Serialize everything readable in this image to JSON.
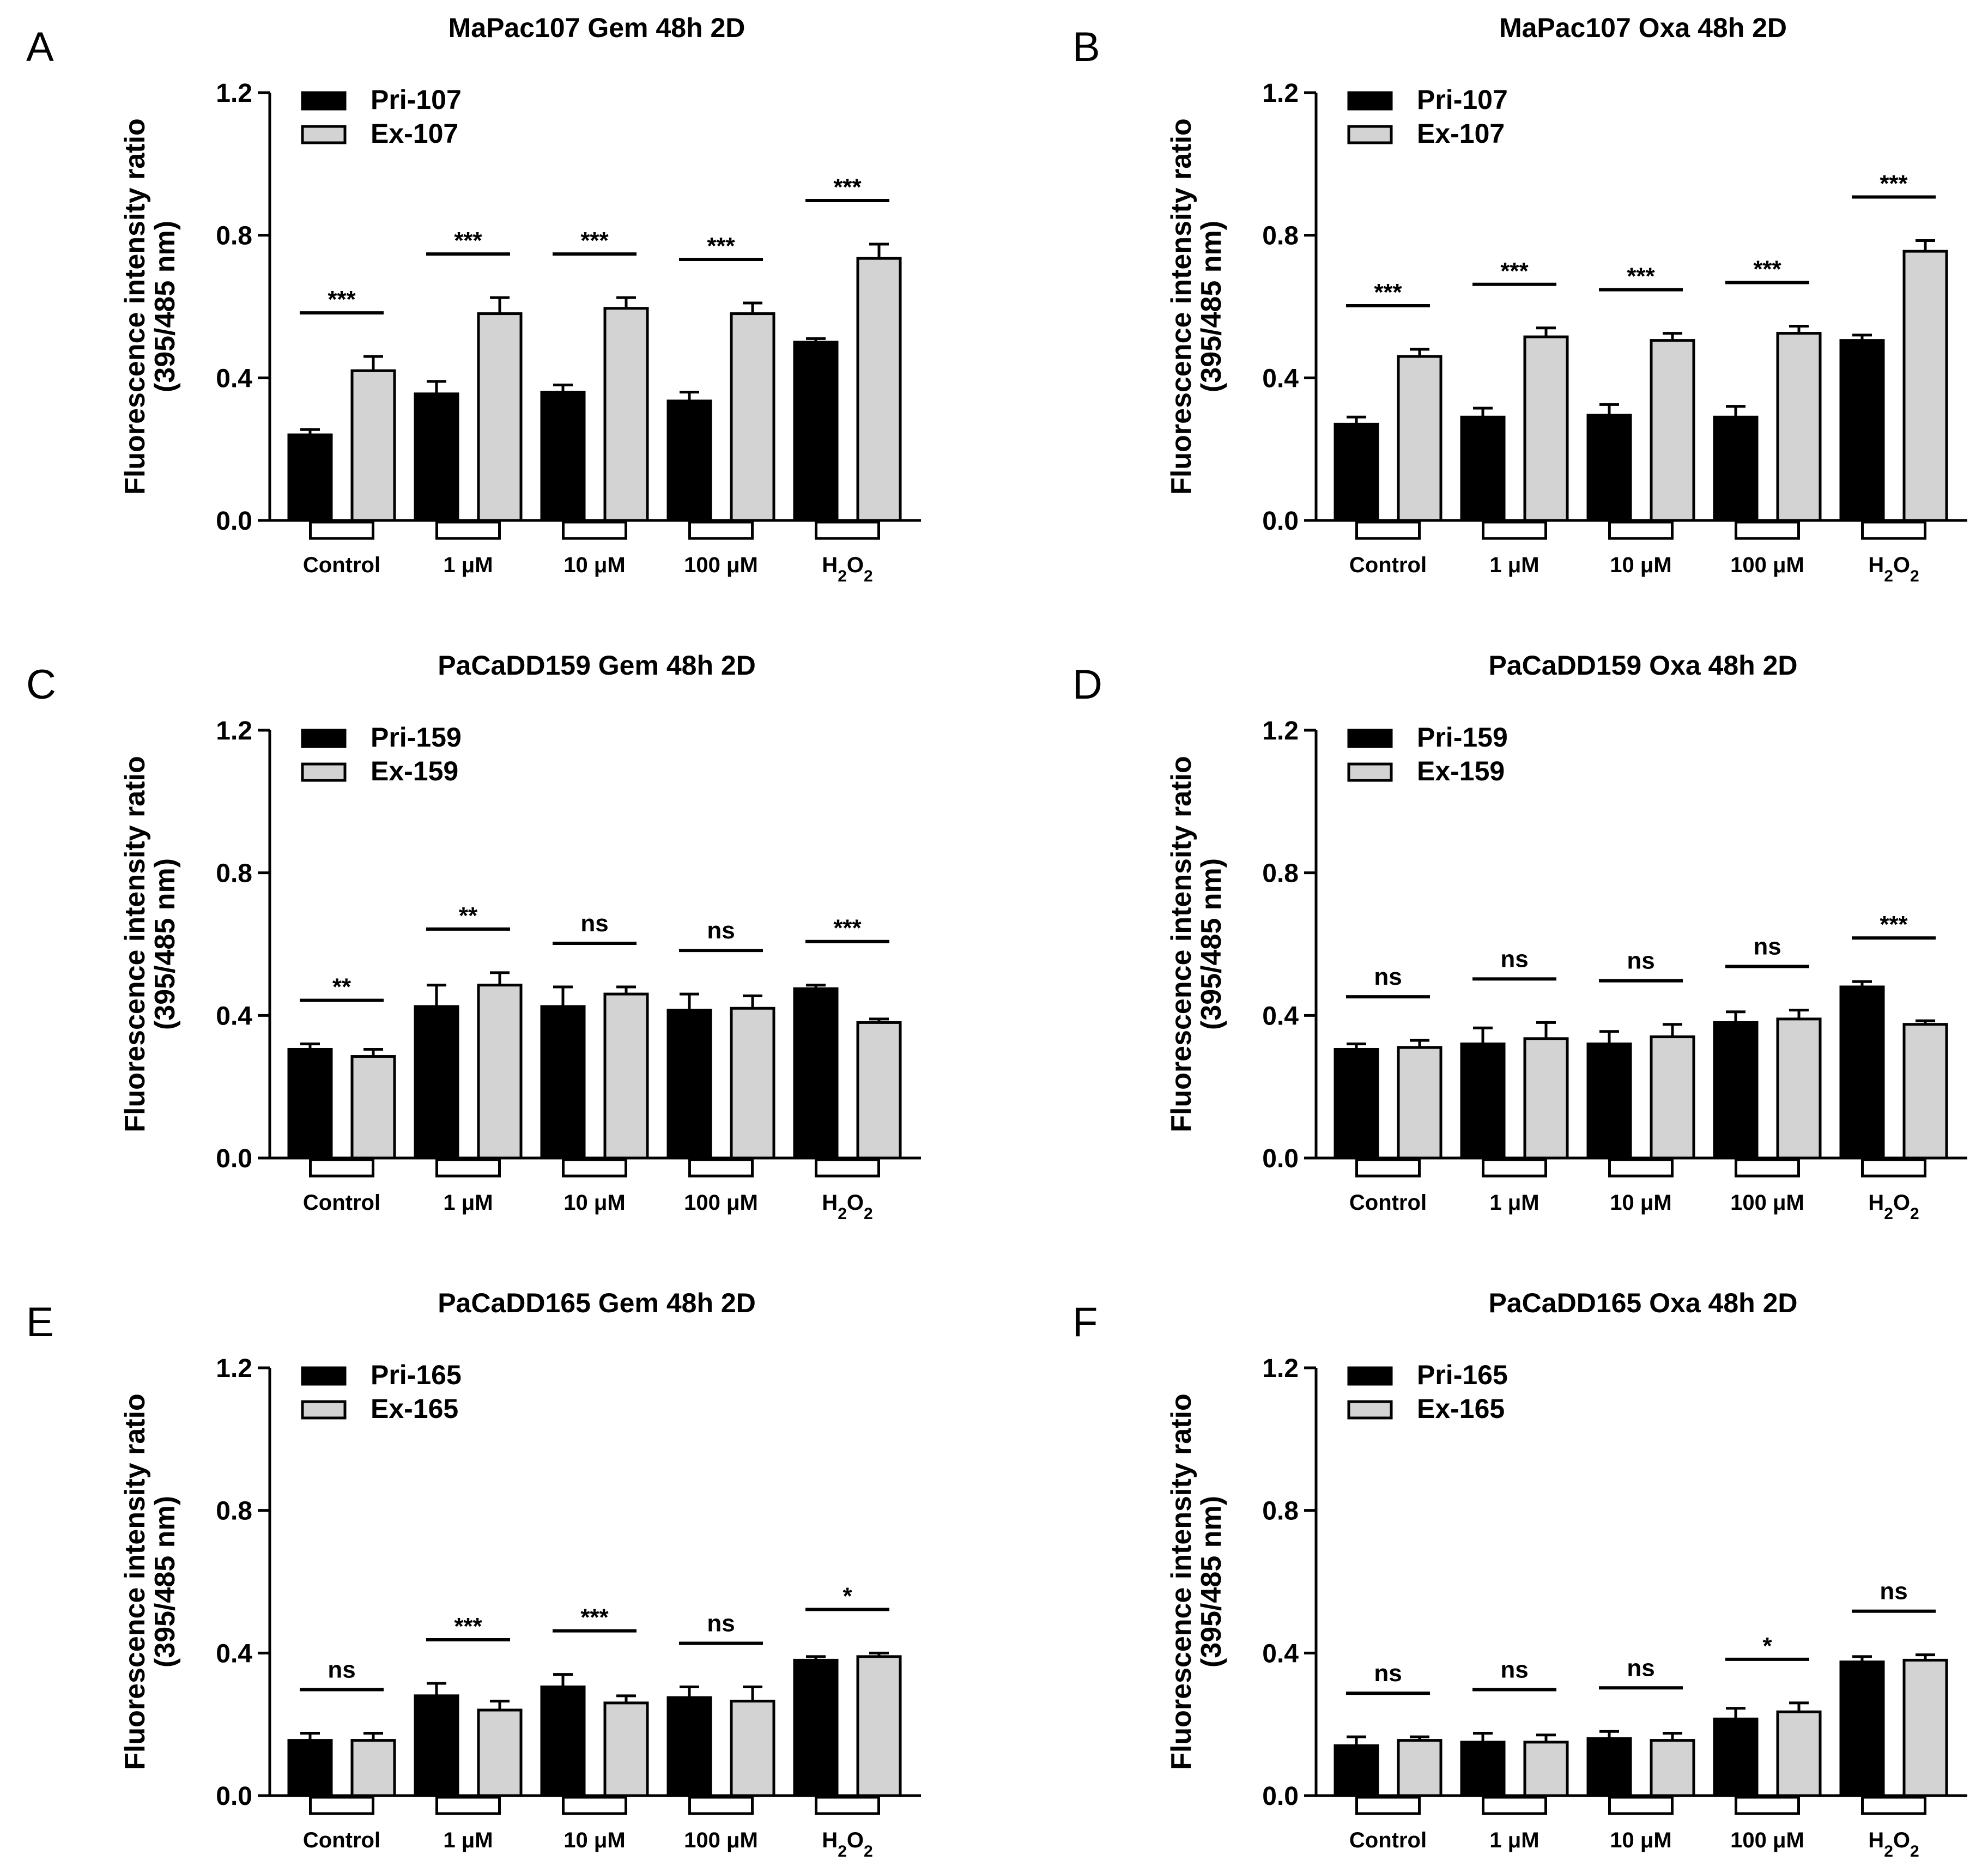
{
  "figure": {
    "type": "multi-panel grouped bar chart"
  },
  "colors": {
    "primary": "#000000",
    "excluded": "#d3d3d3",
    "axis": "#000000"
  },
  "chart_data": [
    {
      "panel": "A",
      "type": "bar",
      "title": "MaPac107 Gem 48h 2D",
      "ylabel_line1": "Fluorescence intensity ratio",
      "ylabel_line2": "(395/485 nm)",
      "ylim": [
        0,
        1.2
      ],
      "yticks": [
        "0.0",
        "0.4",
        "0.8",
        "1.2"
      ],
      "categories": [
        "Control",
        "1 μM",
        "10 μM",
        "100 μM",
        "H2O2"
      ],
      "series": [
        {
          "name": "Pri-107",
          "values": [
            0.24,
            0.355,
            0.36,
            0.335,
            0.5
          ],
          "errors": [
            0.015,
            0.035,
            0.02,
            0.025,
            0.01
          ]
        },
        {
          "name": "Ex-107",
          "values": [
            0.42,
            0.58,
            0.595,
            0.58,
            0.735
          ],
          "errors": [
            0.04,
            0.045,
            0.03,
            0.03,
            0.04
          ]
        }
      ],
      "significance": [
        "***",
        "***",
        "***",
        "***",
        "***"
      ]
    },
    {
      "panel": "B",
      "type": "bar",
      "title": "MaPac107 Oxa 48h 2D",
      "ylabel_line1": "Fluorescence intensity ratio",
      "ylabel_line2": "(395/485 nm)",
      "ylim": [
        0,
        1.2
      ],
      "yticks": [
        "0.0",
        "0.4",
        "0.8",
        "1.2"
      ],
      "categories": [
        "Control",
        "1 μM",
        "10 μM",
        "100 μM",
        "H2O2"
      ],
      "series": [
        {
          "name": "Pri-107",
          "values": [
            0.27,
            0.29,
            0.295,
            0.29,
            0.505
          ],
          "errors": [
            0.02,
            0.025,
            0.03,
            0.03,
            0.015
          ]
        },
        {
          "name": "Ex-107",
          "values": [
            0.46,
            0.515,
            0.505,
            0.525,
            0.755
          ],
          "errors": [
            0.02,
            0.025,
            0.02,
            0.02,
            0.03
          ]
        }
      ],
      "significance": [
        "***",
        "***",
        "***",
        "***",
        "***"
      ]
    },
    {
      "panel": "C",
      "type": "bar",
      "title": "PaCaDD159 Gem 48h 2D",
      "ylabel_line1": "Fluorescence intensity ratio",
      "ylabel_line2": "(395/485 nm)",
      "ylim": [
        0,
        1.2
      ],
      "yticks": [
        "0.0",
        "0.4",
        "0.8",
        "1.2"
      ],
      "categories": [
        "Control",
        "1 μM",
        "10 μM",
        "100 μM",
        "H2O2"
      ],
      "series": [
        {
          "name": "Pri-159",
          "values": [
            0.305,
            0.425,
            0.425,
            0.415,
            0.475
          ],
          "errors": [
            0.015,
            0.06,
            0.055,
            0.045,
            0.01
          ]
        },
        {
          "name": "Ex-159",
          "values": [
            0.285,
            0.485,
            0.46,
            0.42,
            0.38
          ],
          "errors": [
            0.02,
            0.035,
            0.02,
            0.035,
            0.01
          ]
        }
      ],
      "significance": [
        "**",
        "**",
        "ns",
        "ns",
        "***"
      ]
    },
    {
      "panel": "D",
      "type": "bar",
      "title": "PaCaDD159 Oxa 48h 2D",
      "ylabel_line1": "Fluorescence intensity ratio",
      "ylabel_line2": "(395/485 nm)",
      "ylim": [
        0,
        1.2
      ],
      "yticks": [
        "0.0",
        "0.4",
        "0.8",
        "1.2"
      ],
      "categories": [
        "Control",
        "1 μM",
        "10 μM",
        "100 μM",
        "H2O2"
      ],
      "series": [
        {
          "name": "Pri-159",
          "values": [
            0.305,
            0.32,
            0.32,
            0.38,
            0.48
          ],
          "errors": [
            0.015,
            0.045,
            0.035,
            0.03,
            0.015
          ]
        },
        {
          "name": "Ex-159",
          "values": [
            0.31,
            0.335,
            0.34,
            0.39,
            0.375
          ],
          "errors": [
            0.02,
            0.045,
            0.035,
            0.025,
            0.01
          ]
        }
      ],
      "significance": [
        "ns",
        "ns",
        "ns",
        "ns",
        "***"
      ]
    },
    {
      "panel": "E",
      "type": "bar",
      "title": "PaCaDD165 Gem 48h 2D",
      "ylabel_line1": "Fluorescence intensity ratio",
      "ylabel_line2": "(395/485 nm)",
      "ylim": [
        0,
        1.2
      ],
      "yticks": [
        "0.0",
        "0.4",
        "0.8",
        "1.2"
      ],
      "categories": [
        "Control",
        "1 μM",
        "10 μM",
        "100 μM",
        "H2O2"
      ],
      "series": [
        {
          "name": "Pri-165",
          "values": [
            0.155,
            0.28,
            0.305,
            0.275,
            0.38
          ],
          "errors": [
            0.02,
            0.035,
            0.035,
            0.03,
            0.01
          ]
        },
        {
          "name": "Ex-165",
          "values": [
            0.155,
            0.24,
            0.26,
            0.265,
            0.39
          ],
          "errors": [
            0.02,
            0.025,
            0.02,
            0.04,
            0.01
          ]
        }
      ],
      "significance": [
        "ns",
        "***",
        "***",
        "ns",
        "*"
      ]
    },
    {
      "panel": "F",
      "type": "bar",
      "title": "PaCaDD165 Oxa 48h 2D",
      "ylabel_line1": "Fluorescence intensity ratio",
      "ylabel_line2": "(395/485 nm)",
      "ylim": [
        0,
        1.2
      ],
      "yticks": [
        "0.0",
        "0.4",
        "0.8",
        "1.2"
      ],
      "categories": [
        "Control",
        "1 μM",
        "10 μM",
        "100 μM",
        "H2O2"
      ],
      "series": [
        {
          "name": "Pri-165",
          "values": [
            0.14,
            0.15,
            0.16,
            0.215,
            0.375
          ],
          "errors": [
            0.025,
            0.025,
            0.02,
            0.03,
            0.015
          ]
        },
        {
          "name": "Ex-165",
          "values": [
            0.155,
            0.15,
            0.155,
            0.235,
            0.38
          ],
          "errors": [
            0.01,
            0.02,
            0.02,
            0.025,
            0.015
          ]
        }
      ],
      "significance": [
        "ns",
        "ns",
        "ns",
        "*",
        "ns"
      ]
    }
  ]
}
